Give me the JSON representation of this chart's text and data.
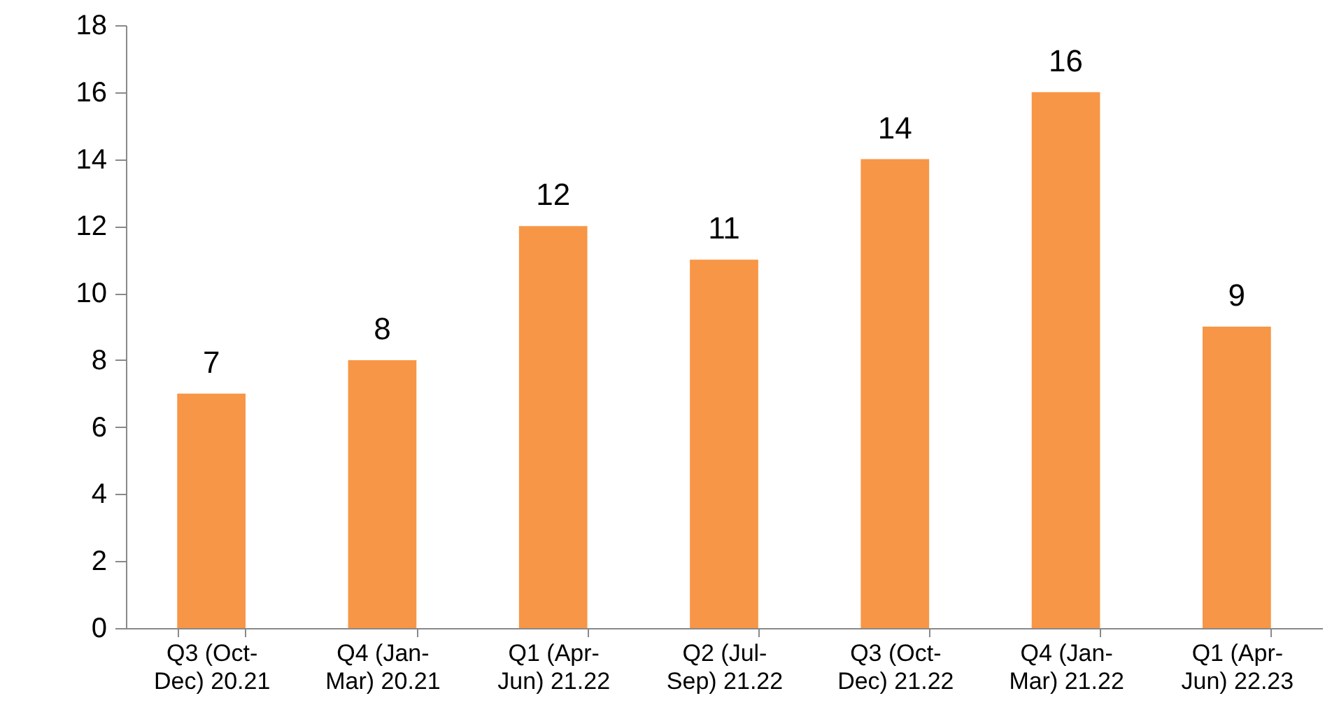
{
  "chart_data": {
    "type": "bar",
    "categories": [
      "Q3 (Oct-Dec) 20.21",
      "Q4 (Jan-Mar) 20.21",
      "Q1 (Apr-Jun) 21.22",
      "Q2 (Jul-Sep) 21.22",
      "Q3 (Oct-Dec) 21.22",
      "Q4 (Jan-Mar) 21.22",
      "Q1 (Apr-Jun) 22.23"
    ],
    "values": [
      7,
      8,
      12,
      11,
      14,
      16,
      9
    ],
    "color": "#f79646",
    "ylim": [
      0,
      18
    ],
    "yticks": [
      0,
      2,
      4,
      6,
      8,
      10,
      12,
      14,
      16,
      18
    ],
    "grid": false,
    "data_labels": true
  }
}
